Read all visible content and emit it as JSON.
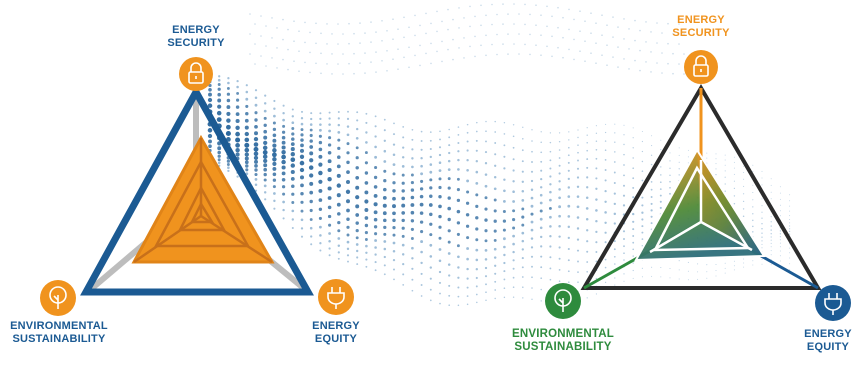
{
  "colors": {
    "blue": "#1b5a93",
    "orange": "#f0931e",
    "green": "#2e8b3d",
    "black": "#2b2b2b",
    "gray": "#b8b8b8",
    "dot_blue": "#1f5f98",
    "dot_light": "#6b9bc4"
  },
  "left_diagram": {
    "security": {
      "line1": "ENERGY",
      "line2": "SECURITY",
      "icon": "lock-icon",
      "color": "#1b5a93",
      "icon_color": "#f0931e"
    },
    "environment": {
      "line1": "ENVIRONMENTAL",
      "line2": "SUSTAINABILITY",
      "icon": "tree-icon",
      "color": "#1b5a93",
      "icon_color": "#f0931e"
    },
    "equity": {
      "line1": "ENERGY",
      "line2": "EQUITY",
      "icon": "plug-icon",
      "color": "#1b5a93",
      "icon_color": "#f0931e"
    }
  },
  "right_diagram": {
    "security": {
      "line1": "ENERGY",
      "line2": "SECURITY",
      "icon": "lock-icon",
      "color": "#f0931e",
      "icon_color": "#f0931e"
    },
    "environment": {
      "line1": "ENVIRONMENTAL",
      "line2": "SUSTAINABILITY",
      "icon": "tree-icon",
      "color": "#2e8b3d",
      "icon_color": "#2e8b3d"
    },
    "equity": {
      "line1": "ENERGY",
      "line2": "EQUITY",
      "icon": "plug-icon",
      "color": "#1b5a93",
      "icon_color": "#1b5a93"
    }
  }
}
